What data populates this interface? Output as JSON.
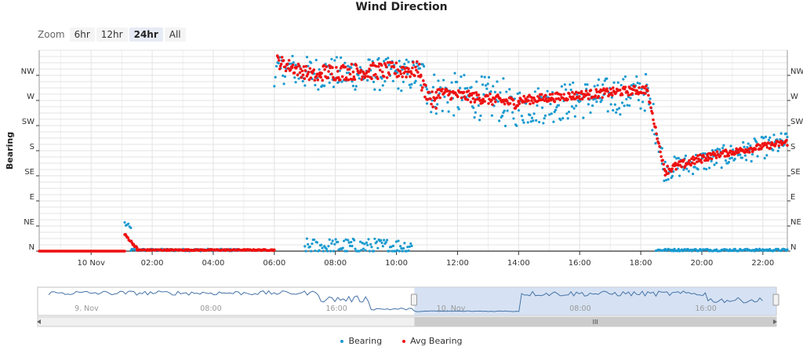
{
  "title": "Wind Direction",
  "zoom": {
    "label": "Zoom",
    "buttons": [
      "6hr",
      "12hr",
      "24hr",
      "All"
    ],
    "active": "24hr"
  },
  "colors": {
    "bearing": "#1a9ad0",
    "avg_bearing": "#ee1111",
    "grid": "#e3e3e3",
    "navigator_line": "#4572a7",
    "navigator_mask": "#c8d8ef",
    "scrollbar": "#cccccc"
  },
  "legend": [
    {
      "name": "Bearing",
      "color": "#1a9ad0"
    },
    {
      "name": "Avg Bearing",
      "color": "#ee1111"
    }
  ],
  "navigator": {
    "labels": [
      "9. Nov",
      "08:00",
      "16:00",
      "10. Nov",
      "08:00",
      "16:00"
    ],
    "scroll_grip": "III"
  },
  "chart_data": {
    "type": "scatter",
    "title": "Wind Direction",
    "ylabel": "Bearing",
    "xlabel": "",
    "x_ticks": [
      "10 Nov",
      "02:00",
      "04:00",
      "06:00",
      "08:00",
      "10:00",
      "12:00",
      "14:00",
      "16:00",
      "18:00",
      "20:00",
      "22:00"
    ],
    "y_ticks": [
      "N",
      "NE",
      "E",
      "SE",
      "S",
      "SW",
      "W",
      "NW"
    ],
    "y_range_deg": [
      0,
      360
    ],
    "x_range_hours": [
      -1.7,
      22.8
    ],
    "grid": true,
    "legend_position": "bottom-center",
    "series": [
      {
        "name": "Bearing",
        "marker": "dot",
        "segments": [
          {
            "x_start": 1.1,
            "x_end": 1.3,
            "y_start": 50,
            "y_end": 40,
            "spread": 5
          },
          {
            "x_start": 1.3,
            "x_end": 4.9,
            "y_start": 2,
            "y_end": 2,
            "spread": 2
          },
          {
            "x_start": 6.0,
            "x_end": 6.7,
            "y_start": 320,
            "y_end": 330,
            "spread": 25
          },
          {
            "x_start": 6.7,
            "x_end": 11.0,
            "y_start": 320,
            "y_end": 315,
            "spread": 30
          },
          {
            "x_start": 11.0,
            "x_end": 13.5,
            "y_start": 285,
            "y_end": 270,
            "spread": 40
          },
          {
            "x_start": 13.5,
            "x_end": 18.2,
            "y_start": 255,
            "y_end": 285,
            "spread": 35
          },
          {
            "x_start": 18.2,
            "x_end": 18.7,
            "y_start": 280,
            "y_end": 180,
            "spread": 30
          },
          {
            "x_start": 18.7,
            "x_end": 22.8,
            "y_start": 145,
            "y_end": 195,
            "spread": 20
          },
          {
            "x_start": 7.0,
            "x_end": 10.5,
            "y_start": 8,
            "y_end": 8,
            "spread": 15
          },
          {
            "x_start": 18.5,
            "x_end": 22.8,
            "y_start": 2,
            "y_end": 2,
            "spread": 2
          }
        ]
      },
      {
        "name": "Avg Bearing",
        "marker": "dot",
        "segments": [
          {
            "x_start": -1.7,
            "x_end": 1.1,
            "y_start": 0,
            "y_end": 0,
            "spread": 0
          },
          {
            "x_start": 1.1,
            "x_end": 1.5,
            "y_start": 30,
            "y_end": 5,
            "spread": 2
          },
          {
            "x_start": 1.5,
            "x_end": 6.0,
            "y_start": 2,
            "y_end": 2,
            "spread": 1
          },
          {
            "x_start": 6.1,
            "x_end": 7.5,
            "y_start": 340,
            "y_end": 310,
            "spread": 12
          },
          {
            "x_start": 7.5,
            "x_end": 10.8,
            "y_start": 320,
            "y_end": 325,
            "spread": 15
          },
          {
            "x_start": 10.8,
            "x_end": 11.3,
            "y_start": 300,
            "y_end": 260,
            "spread": 15
          },
          {
            "x_start": 11.3,
            "x_end": 14.0,
            "y_start": 285,
            "y_end": 265,
            "spread": 10
          },
          {
            "x_start": 14.0,
            "x_end": 18.2,
            "y_start": 270,
            "y_end": 290,
            "spread": 8
          },
          {
            "x_start": 18.2,
            "x_end": 18.8,
            "y_start": 290,
            "y_end": 140,
            "spread": 4
          },
          {
            "x_start": 18.8,
            "x_end": 20.2,
            "y_start": 145,
            "y_end": 170,
            "spread": 8
          },
          {
            "x_start": 20.2,
            "x_end": 22.8,
            "y_start": 170,
            "y_end": 195,
            "spread": 6
          }
        ]
      }
    ]
  }
}
